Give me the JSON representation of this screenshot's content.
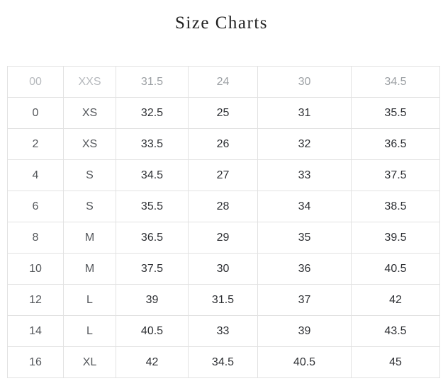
{
  "title": "Size Charts",
  "size_chart": {
    "rows": [
      {
        "muted": true,
        "cells": [
          "00",
          "XXS",
          "31.5",
          "24",
          "30",
          "34.5"
        ]
      },
      {
        "muted": false,
        "cells": [
          "0",
          "XS",
          "32.5",
          "25",
          "31",
          "35.5"
        ]
      },
      {
        "muted": false,
        "cells": [
          "2",
          "XS",
          "33.5",
          "26",
          "32",
          "36.5"
        ]
      },
      {
        "muted": false,
        "cells": [
          "4",
          "S",
          "34.5",
          "27",
          "33",
          "37.5"
        ]
      },
      {
        "muted": false,
        "cells": [
          "6",
          "S",
          "35.5",
          "28",
          "34",
          "38.5"
        ]
      },
      {
        "muted": false,
        "cells": [
          "8",
          "M",
          "36.5",
          "29",
          "35",
          "39.5"
        ]
      },
      {
        "muted": false,
        "cells": [
          "10",
          "M",
          "37.5",
          "30",
          "36",
          "40.5"
        ]
      },
      {
        "muted": false,
        "cells": [
          "12",
          "L",
          "39",
          "31.5",
          "37",
          "42"
        ]
      },
      {
        "muted": false,
        "cells": [
          "14",
          "L",
          "40.5",
          "33",
          "39",
          "43.5"
        ]
      },
      {
        "muted": false,
        "cells": [
          "16",
          "XL",
          "42",
          "34.5",
          "40.5",
          "45"
        ]
      }
    ]
  },
  "colors": {
    "title": "#212121",
    "border": "#e2e2e2",
    "label": "#54575b",
    "value": "#2e3034",
    "muted_label": "#b6b9bd",
    "muted_value": "#9ca0a4"
  }
}
